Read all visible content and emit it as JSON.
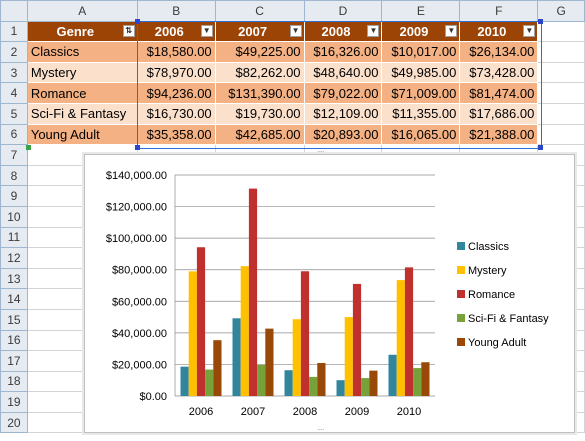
{
  "columns": [
    "A",
    "B",
    "C",
    "D",
    "E",
    "F",
    "G"
  ],
  "rows": [
    "1",
    "2",
    "3",
    "4",
    "5",
    "6",
    "7",
    "8",
    "9",
    "10",
    "11",
    "12",
    "13",
    "14",
    "15",
    "16",
    "17",
    "18",
    "19",
    "20"
  ],
  "table": {
    "headers": [
      "Genre",
      "2006",
      "2007",
      "2008",
      "2009",
      "2010"
    ],
    "sort_icon": "sort-ascending-icon",
    "filter_icon": "dropdown-arrow-icon",
    "data": [
      [
        "Classics",
        "$18,580.00",
        "$49,225.00",
        "$16,326.00",
        "$10,017.00",
        "$26,134.00"
      ],
      [
        "Mystery",
        "$78,970.00",
        "$82,262.00",
        "$48,640.00",
        "$49,985.00",
        "$73,428.00"
      ],
      [
        "Romance",
        "$94,236.00",
        "$131,390.00",
        "$79,022.00",
        "$71,009.00",
        "$81,474.00"
      ],
      [
        "Sci-Fi & Fantasy",
        "$16,730.00",
        "$19,730.00",
        "$12,109.00",
        "$11,355.00",
        "$17,686.00"
      ],
      [
        "Young Adult",
        "$35,358.00",
        "$42,685.00",
        "$20,893.00",
        "$16,065.00",
        "$21,388.00"
      ]
    ],
    "colors": {
      "header_bg": "#9c4306",
      "row_dark": "#f4b183",
      "row_light": "#fbe0cc"
    }
  },
  "chart_data": {
    "type": "bar",
    "categories": [
      "2006",
      "2007",
      "2008",
      "2009",
      "2010"
    ],
    "series": [
      {
        "name": "Classics",
        "color": "#31859c",
        "values": [
          18580,
          49225,
          16326,
          10017,
          26134
        ]
      },
      {
        "name": "Mystery",
        "color": "#ffc000",
        "values": [
          78970,
          82262,
          48640,
          49985,
          73428
        ]
      },
      {
        "name": "Romance",
        "color": "#c0312e",
        "values": [
          94236,
          131390,
          79022,
          71009,
          81474
        ]
      },
      {
        "name": "Sci-Fi & Fantasy",
        "color": "#77a13a",
        "values": [
          16730,
          19730,
          12109,
          11355,
          17686
        ]
      },
      {
        "name": "Young Adult",
        "color": "#984807",
        "values": [
          35358,
          42685,
          20893,
          16065,
          21388
        ]
      }
    ],
    "y_ticks": [
      "$0.00",
      "$20,000.00",
      "$40,000.00",
      "$60,000.00",
      "$80,000.00",
      "$100,000.00",
      "$120,000.00",
      "$140,000.00"
    ],
    "ylim": [
      0,
      140000
    ],
    "grid": true,
    "legend": "right"
  }
}
